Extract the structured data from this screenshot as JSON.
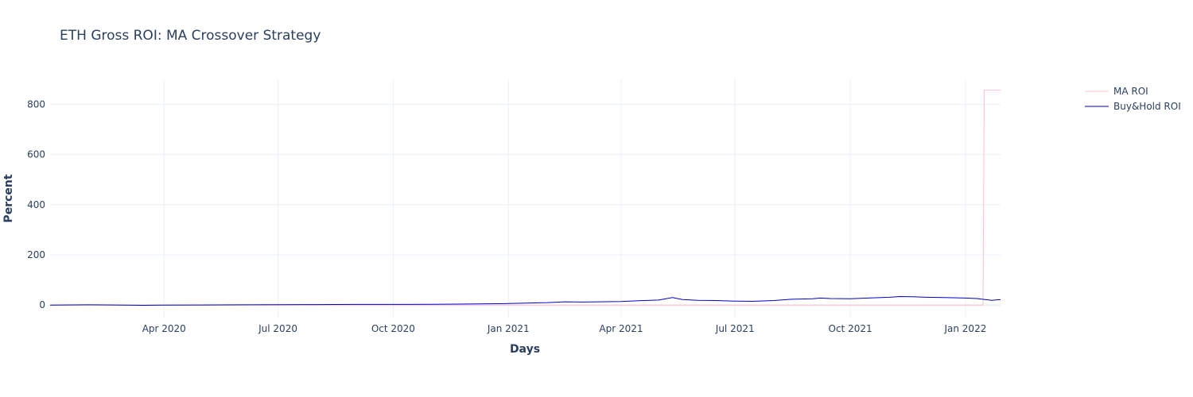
{
  "chart_data": {
    "type": "line",
    "title": "ETH Gross ROI: MA Crossover Strategy",
    "xlabel": "Days",
    "ylabel": "Percent",
    "xlim": [
      "2020-01-01",
      "2022-01-29"
    ],
    "ylim": [
      -50,
      900
    ],
    "x_ticks": [
      {
        "date": "2020-04-01",
        "label": "Apr 2020"
      },
      {
        "date": "2020-07-01",
        "label": "Jul 2020"
      },
      {
        "date": "2020-10-01",
        "label": "Oct 2020"
      },
      {
        "date": "2021-01-01",
        "label": "Jan 2021"
      },
      {
        "date": "2021-04-01",
        "label": "Apr 2021"
      },
      {
        "date": "2021-07-01",
        "label": "Jul 2021"
      },
      {
        "date": "2021-10-01",
        "label": "Oct 2021"
      },
      {
        "date": "2022-01-01",
        "label": "Jan 2022"
      }
    ],
    "y_ticks": [
      0,
      200,
      400,
      600,
      800
    ],
    "grid": true,
    "legend_position": "top-right",
    "series": [
      {
        "name": "MA ROI",
        "color": "#ffc0cb",
        "x": [
          "2020-01-01",
          "2021-01-01",
          "2022-01-15",
          "2022-01-16",
          "2022-01-29"
        ],
        "y": [
          0,
          0,
          0,
          857,
          857
        ]
      },
      {
        "name": "Buy&Hold ROI",
        "color": "#0000cd",
        "x": [
          "2020-01-01",
          "2020-02-01",
          "2020-03-01",
          "2020-03-15",
          "2020-04-01",
          "2020-05-01",
          "2020-06-01",
          "2020-07-01",
          "2020-08-01",
          "2020-09-01",
          "2020-10-01",
          "2020-11-01",
          "2020-12-01",
          "2020-12-15",
          "2021-01-01",
          "2021-01-15",
          "2021-02-01",
          "2021-02-15",
          "2021-03-01",
          "2021-03-15",
          "2021-04-01",
          "2021-04-15",
          "2021-05-01",
          "2021-05-12",
          "2021-05-20",
          "2021-06-01",
          "2021-06-15",
          "2021-07-01",
          "2021-07-15",
          "2021-08-01",
          "2021-08-15",
          "2021-09-01",
          "2021-09-07",
          "2021-09-15",
          "2021-10-01",
          "2021-10-15",
          "2021-11-01",
          "2021-11-10",
          "2021-11-20",
          "2021-12-01",
          "2021-12-15",
          "2022-01-01",
          "2022-01-10",
          "2022-01-22",
          "2022-01-29"
        ],
        "y": [
          0,
          1,
          0,
          -1,
          0,
          0.5,
          1,
          1.5,
          2,
          2.5,
          2.5,
          3,
          4,
          5,
          6,
          8,
          10,
          13,
          12,
          13,
          14,
          17,
          20,
          30,
          22,
          19,
          18,
          16,
          15,
          18,
          23,
          25,
          28,
          26,
          25,
          28,
          31,
          34,
          33,
          31,
          30,
          28,
          26,
          19,
          22
        ]
      }
    ]
  }
}
